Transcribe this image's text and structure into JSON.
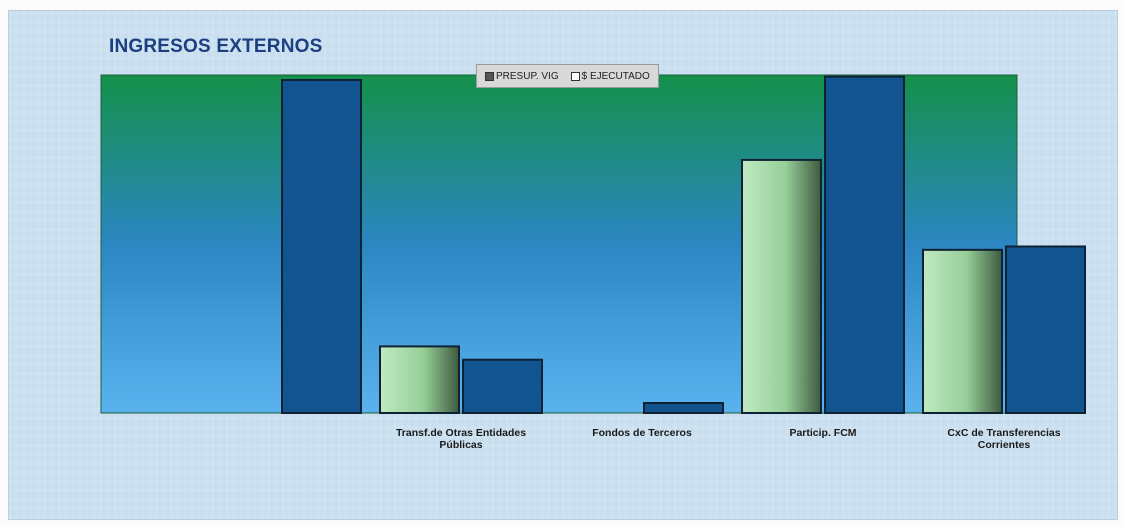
{
  "chart_data": {
    "type": "bar",
    "title": "INGRESOS EXTERNOS",
    "xlabel": "",
    "ylabel": "",
    "grid": false,
    "legend_placement": "top-center",
    "categories": [
      "",
      "Transf.de Otras Entidades Públicas",
      "Fondos de Terceros",
      "Particip. FCM",
      "CxC de Transferencias Corrientes"
    ],
    "series": [
      {
        "name": "PRESUP. VIG",
        "color": "#a8dca8",
        "values": [
          0,
          20,
          0,
          76,
          49
        ]
      },
      {
        "name": "$ EJECUTADO",
        "color": "#11548f",
        "values": [
          100,
          16,
          3,
          101,
          50
        ]
      }
    ],
    "ylim": [
      0,
      100
    ]
  },
  "colors": {
    "plot_top": "#15904a",
    "plot_bottom": "#5ab3ee",
    "title": "#1b3f80"
  }
}
